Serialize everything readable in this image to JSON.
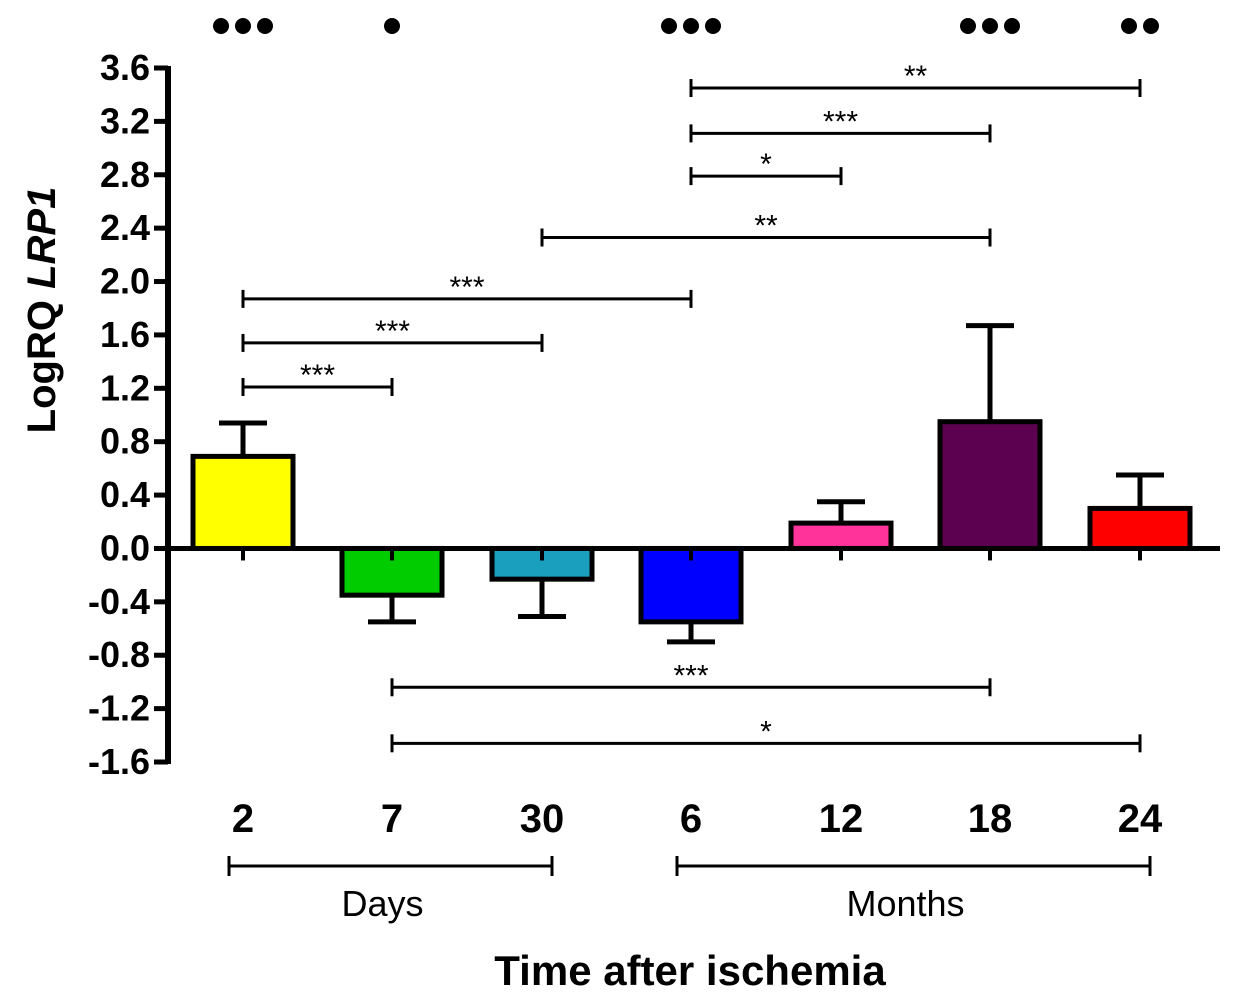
{
  "chart_data": {
    "type": "bar",
    "ylabel_plain": "LogRQ ",
    "ylabel_italic": "LRP1",
    "xlabel": "Time after ischemia",
    "ylim": [
      -1.6,
      3.6
    ],
    "yticks": [
      "3.6",
      "3.2",
      "2.8",
      "2.4",
      "2.0",
      "1.6",
      "1.2",
      "0.8",
      "0.4",
      "0.0",
      "-0.4",
      "-0.8",
      "-1.2",
      "-1.6"
    ],
    "ytick_values": [
      3.6,
      3.2,
      2.8,
      2.4,
      2.0,
      1.6,
      1.2,
      0.8,
      0.4,
      0.0,
      -0.4,
      -0.8,
      -1.2,
      -1.6
    ],
    "categories": [
      "2",
      "7",
      "30",
      "6",
      "12",
      "18",
      "24"
    ],
    "values": [
      0.69,
      -0.35,
      -0.23,
      -0.55,
      0.19,
      0.95,
      0.3
    ],
    "errors": [
      0.25,
      0.2,
      0.28,
      0.15,
      0.16,
      0.72,
      0.25
    ],
    "colors": [
      "#ffff00",
      "#00cc00",
      "#1a9fbf",
      "#0000ff",
      "#ff3399",
      "#5c0050",
      "#ff0000"
    ],
    "groups": [
      {
        "label": "Days",
        "from": 0,
        "to": 2
      },
      {
        "label": "Months",
        "from": 3,
        "to": 6
      }
    ],
    "top_markers": [
      {
        "index": 0,
        "count": 3
      },
      {
        "index": 1,
        "count": 1
      },
      {
        "index": 3,
        "count": 3
      },
      {
        "index": 5,
        "count": 3
      },
      {
        "index": 6,
        "count": 2
      }
    ],
    "comparisons": [
      {
        "from": 3,
        "to": 6,
        "y": 3.45,
        "label": "**"
      },
      {
        "from": 3,
        "to": 5,
        "y": 3.11,
        "label": "***"
      },
      {
        "from": 3,
        "to": 4,
        "y": 2.79,
        "label": "*"
      },
      {
        "from": 2,
        "to": 5,
        "y": 2.33,
        "label": "**"
      },
      {
        "from": 0,
        "to": 3,
        "y": 1.87,
        "label": "***"
      },
      {
        "from": 0,
        "to": 2,
        "y": 1.54,
        "label": "***"
      },
      {
        "from": 0,
        "to": 1,
        "y": 1.21,
        "label": "***"
      },
      {
        "from": 1,
        "to": 5,
        "y": -1.04,
        "label": "***"
      },
      {
        "from": 1,
        "to": 6,
        "y": -1.46,
        "label": "*"
      }
    ]
  }
}
